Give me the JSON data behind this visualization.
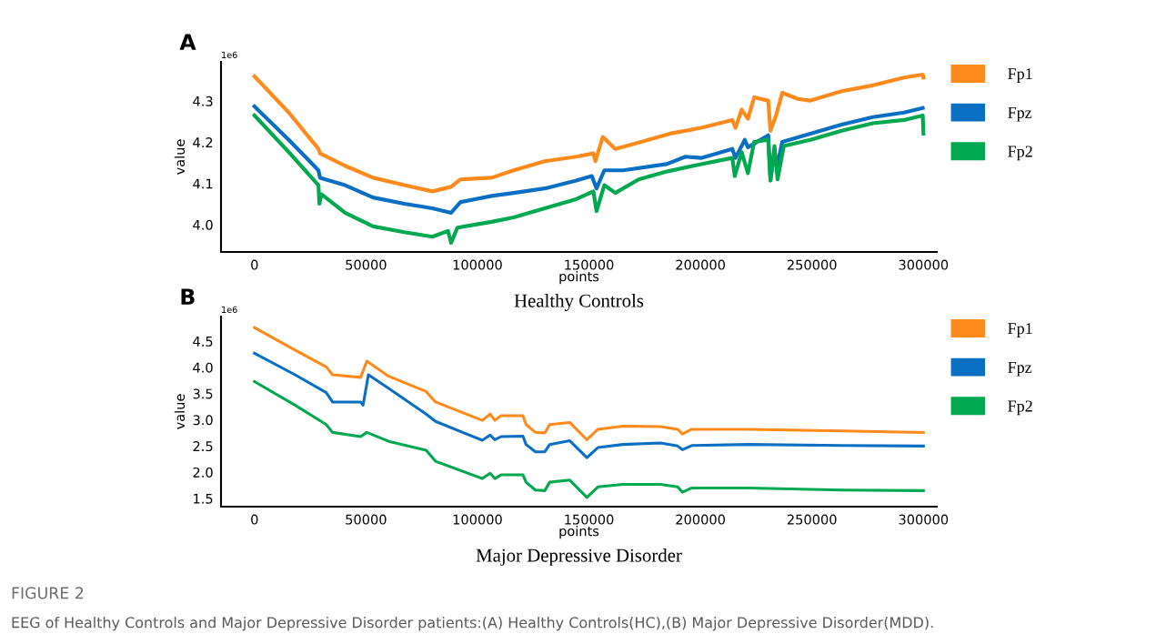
{
  "chart_data": [
    {
      "type": "line",
      "title": "A",
      "subtitle": "Healthy Controls",
      "xlabel": "points",
      "ylabel": "value",
      "annotations": [
        "1e6"
      ],
      "xlim": [
        -15000,
        306000
      ],
      "xticks": [
        0,
        50000,
        100000,
        150000,
        200000,
        250000,
        300000
      ],
      "ylim": [
        3.934,
        4.395
      ],
      "yticks": [
        {
          "value": 4,
          "label": "4.0"
        },
        4.1,
        4.2,
        4.3
      ],
      "grid": false,
      "legend": "right",
      "series": [
        {
          "name": "Fp1",
          "color": "#ff8a1c",
          "x": [
            0,
            15400,
            28700,
            29400,
            40600,
            53200,
            67200,
            79800,
            88200,
            92400,
            106400,
            116200,
            130200,
            144300,
            152000,
            152900,
            156200,
            161800,
            172300,
            186300,
            200300,
            214300,
            215700,
            218500,
            221300,
            224100,
            230400,
            231400,
            233900,
            236700,
            243700,
            249300,
            263300,
            277300,
            291300,
            299700,
            300000
          ],
          "values": [
            4.36,
            4.272,
            4.184,
            4.173,
            4.143,
            4.114,
            4.096,
            4.081,
            4.092,
            4.11,
            4.114,
            4.132,
            4.154,
            4.165,
            4.173,
            4.154,
            4.213,
            4.184,
            4.199,
            4.221,
            4.235,
            4.254,
            4.235,
            4.279,
            4.257,
            4.309,
            4.301,
            4.228,
            4.265,
            4.32,
            4.305,
            4.301,
            4.324,
            4.338,
            4.357,
            4.364,
            4.357
          ]
        },
        {
          "name": "Fpz",
          "color": "#0a6fc2",
          "x": [
            0,
            15400,
            28700,
            29400,
            40600,
            53200,
            67200,
            79800,
            88200,
            92400,
            106400,
            116200,
            130200,
            144300,
            151300,
            153400,
            156900,
            165300,
            184900,
            193300,
            200300,
            214300,
            215700,
            219900,
            221300,
            230400,
            231400,
            233200,
            234600,
            236700,
            249300,
            263300,
            277300,
            291300,
            299700
          ],
          "values": [
            4.287,
            4.206,
            4.132,
            4.114,
            4.096,
            4.066,
            4.051,
            4.04,
            4.029,
            4.055,
            4.07,
            4.077,
            4.088,
            4.107,
            4.118,
            4.088,
            4.132,
            4.132,
            4.147,
            4.165,
            4.162,
            4.184,
            4.162,
            4.206,
            4.188,
            4.217,
            4.11,
            4.173,
            4.147,
            4.201,
            4.221,
            4.243,
            4.261,
            4.272,
            4.283
          ]
        },
        {
          "name": "Fp2",
          "color": "#00a84f",
          "x": [
            0,
            15400,
            28700,
            29100,
            30100,
            40600,
            53200,
            67200,
            79800,
            86800,
            88200,
            91000,
            106400,
            116200,
            130200,
            144300,
            152000,
            153400,
            156900,
            161800,
            172300,
            184900,
            200300,
            214300,
            215400,
            218500,
            221300,
            224100,
            230400,
            231400,
            233200,
            234600,
            237400,
            249300,
            263300,
            277300,
            291300,
            299700,
            300000
          ],
          "values": [
            4.265,
            4.176,
            4.096,
            4.051,
            4.074,
            4.029,
            3.996,
            3.982,
            3.971,
            3.985,
            3.956,
            3.993,
            4.007,
            4.018,
            4.04,
            4.062,
            4.081,
            4.033,
            4.096,
            4.077,
            4.11,
            4.129,
            4.147,
            4.162,
            4.118,
            4.176,
            4.125,
            4.201,
            4.206,
            4.107,
            4.191,
            4.11,
            4.191,
            4.206,
            4.228,
            4.246,
            4.254,
            4.265,
            4.221
          ]
        }
      ]
    },
    {
      "type": "line",
      "title": "B",
      "subtitle": "Major Depressive Disorder",
      "xlabel": "points",
      "ylabel": "value",
      "annotations": [
        "1e6",
        "FIGURE 2",
        "EEG of Healthy Controls and Major Depressive Disorder patients:(A) Healthy Controls(HC),(B) Major Depressive Disorder(MDD)."
      ],
      "xlim": [
        -15000,
        306000
      ],
      "xticks": [
        0,
        50000,
        100000,
        150000,
        200000,
        250000,
        300000
      ],
      "ylim": [
        1.344,
        4.97
      ],
      "yticks": [
        1.5,
        {
          "value": 2,
          "label": "2.0"
        },
        2.5,
        {
          "value": 3,
          "label": "3.0"
        },
        3.5,
        {
          "value": 4,
          "label": "4.0"
        },
        4.5
      ],
      "grid": false,
      "legend": "right",
      "series": [
        {
          "name": "Fp1",
          "color": "#ff8a1c",
          "x": [
            0,
            18200,
            32200,
            35000,
            47600,
            50400,
            60200,
            77000,
            81200,
            102200,
            105700,
            107800,
            110600,
            120400,
            121800,
            126000,
            130200,
            132400,
            141400,
            149100,
            154000,
            165300,
            182100,
            189800,
            191900,
            196100,
            221300,
            263300,
            300000
          ],
          "values": [
            4.76,
            4.33,
            4.01,
            3.86,
            3.81,
            4.12,
            3.83,
            3.54,
            3.34,
            2.99,
            3.11,
            2.99,
            3.08,
            3.08,
            2.91,
            2.76,
            2.75,
            2.91,
            2.95,
            2.62,
            2.82,
            2.88,
            2.87,
            2.82,
            2.73,
            2.82,
            2.82,
            2.79,
            2.76
          ]
        },
        {
          "name": "Fpz",
          "color": "#0a6fc2",
          "x": [
            0,
            18200,
            32200,
            35000,
            47600,
            48700,
            51100,
            60200,
            77000,
            81200,
            102200,
            105700,
            107800,
            110600,
            120400,
            121800,
            126000,
            130200,
            132400,
            141400,
            149100,
            154000,
            165300,
            182100,
            189800,
            191900,
            196100,
            221300,
            263300,
            300000
          ],
          "values": [
            4.27,
            3.86,
            3.52,
            3.34,
            3.34,
            3.28,
            3.86,
            3.6,
            3.11,
            2.97,
            2.61,
            2.71,
            2.62,
            2.68,
            2.69,
            2.53,
            2.39,
            2.39,
            2.53,
            2.6,
            2.28,
            2.47,
            2.53,
            2.56,
            2.5,
            2.43,
            2.51,
            2.53,
            2.51,
            2.5
          ]
        },
        {
          "name": "Fp2",
          "color": "#00a84f",
          "x": [
            0,
            18200,
            32200,
            35000,
            47600,
            50400,
            60200,
            77000,
            81200,
            102200,
            105700,
            107800,
            110600,
            120400,
            121800,
            126000,
            130200,
            132400,
            141400,
            149100,
            154000,
            165300,
            182100,
            189800,
            191900,
            196100,
            221300,
            263300,
            300000
          ],
          "values": [
            3.73,
            3.28,
            2.91,
            2.76,
            2.68,
            2.76,
            2.59,
            2.42,
            2.21,
            1.88,
            1.98,
            1.88,
            1.95,
            1.95,
            1.81,
            1.66,
            1.65,
            1.81,
            1.85,
            1.52,
            1.72,
            1.77,
            1.77,
            1.72,
            1.62,
            1.7,
            1.7,
            1.66,
            1.65
          ]
        }
      ]
    }
  ]
}
